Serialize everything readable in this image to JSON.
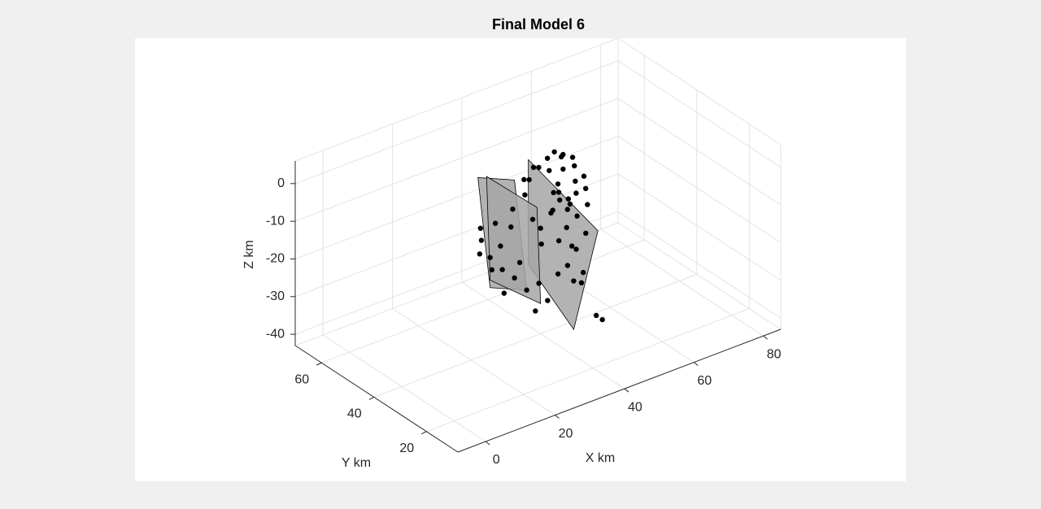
{
  "chart_data": {
    "type": "scatter3d",
    "title": "Final Model 6",
    "xlabel": "X km",
    "ylabel": "Y km",
    "zlabel": "Z km",
    "xlim": [
      -8,
      85
    ],
    "ylim": [
      8,
      70
    ],
    "zlim": [
      -43,
      6
    ],
    "xticks": [
      0,
      20,
      40,
      60,
      80
    ],
    "yticks": [
      20,
      40,
      60
    ],
    "zticks": [
      -40,
      -30,
      -20,
      -10,
      0
    ],
    "grid": true,
    "point_color": "#000000",
    "plane_color": "#a6a6a6",
    "x": [
      40,
      42,
      45,
      44,
      46,
      47,
      43,
      48,
      50,
      49,
      41,
      45,
      47,
      52,
      51,
      46,
      44,
      42,
      38,
      36,
      34,
      32,
      30,
      29,
      28,
      30,
      33,
      35,
      37,
      39,
      48,
      50,
      52,
      53,
      54,
      49,
      51,
      53,
      46,
      43,
      41,
      39,
      37,
      45,
      47,
      50,
      51,
      31,
      29,
      27,
      44,
      42,
      48,
      50,
      46,
      40,
      36,
      34,
      48,
      44
    ],
    "y": [
      40,
      38,
      40,
      42,
      41,
      39,
      37,
      42,
      40,
      38,
      44,
      44,
      44,
      43,
      41,
      36,
      35,
      36,
      38,
      40,
      42,
      44,
      46,
      48,
      47,
      44,
      46,
      44,
      42,
      45,
      37,
      36,
      38,
      40,
      42,
      44,
      46,
      45,
      38,
      40,
      41,
      36,
      38,
      34,
      33,
      32,
      31,
      42,
      44,
      46,
      46,
      47,
      40,
      42,
      43,
      43,
      46,
      40,
      35,
      38
    ],
    "z": [
      -15,
      -10,
      -5,
      -2,
      -8,
      -12,
      -18,
      -3,
      -6,
      -14,
      -1,
      0,
      1,
      -4,
      -10,
      -20,
      -24,
      -26,
      -28,
      -30,
      -27,
      -25,
      -22,
      -18,
      -14,
      -12,
      -20,
      -10,
      -6,
      -4,
      -22,
      -18,
      -12,
      -9,
      -7,
      -1,
      -2,
      -3,
      -16,
      -12,
      -20,
      -32,
      -35,
      -28,
      -26,
      -38,
      -39,
      -30,
      -24,
      -20,
      -3,
      -6,
      -10,
      -13,
      -9,
      -14,
      -16,
      -22,
      -30,
      -8
    ],
    "planes": [
      [
        [
          28,
          48,
          -1
        ],
        [
          34,
          42,
          -1
        ],
        [
          36,
          40,
          -30
        ],
        [
          30,
          46,
          -30
        ]
      ],
      [
        [
          38,
          42,
          3
        ],
        [
          55,
          38,
          -20
        ],
        [
          42,
          30,
          -38
        ],
        [
          35,
          38,
          -22
        ]
      ],
      [
        [
          32,
          50,
          -3
        ],
        [
          42,
          44,
          -12
        ],
        [
          40,
          40,
          -35
        ],
        [
          30,
          46,
          -28
        ]
      ]
    ]
  }
}
